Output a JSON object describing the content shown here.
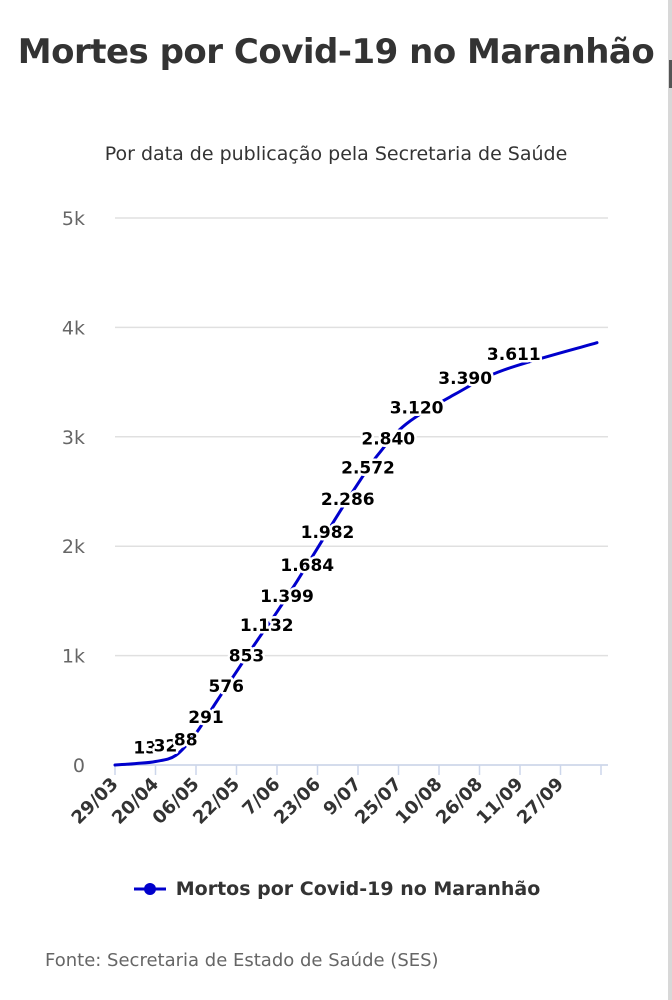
{
  "chart_data": {
    "type": "line",
    "title": "Mortes por Covid-19 no Maranhão",
    "subtitle": "Por data de publicação pela Secretaria de Saúde",
    "ylim": [
      0,
      5000
    ],
    "y_ticks": [
      {
        "value": 0,
        "label": "0"
      },
      {
        "value": 1000,
        "label": "1k"
      },
      {
        "value": 2000,
        "label": "2k"
      },
      {
        "value": 3000,
        "label": "3k"
      },
      {
        "value": 4000,
        "label": "4k"
      },
      {
        "value": 5000,
        "label": "5k"
      }
    ],
    "x_tick_labels": [
      "29/03",
      "20/04",
      "06/05",
      "22/05",
      "7/06",
      "23/06",
      "9/07",
      "25/07",
      "10/08",
      "26/08",
      "11/09",
      "27/09"
    ],
    "grid": true,
    "legend_position": "bottom",
    "series": [
      {
        "name": "Mortos por Covid-19 no Maranhão",
        "color": "#0000cc",
        "points": [
          {
            "x": 0,
            "y": 0
          },
          {
            "x": 0.5,
            "y": 13,
            "label": "13"
          },
          {
            "x": 1,
            "y": 32,
            "label": "32"
          },
          {
            "x": 1.5,
            "y": 88,
            "label": "88"
          },
          {
            "x": 2,
            "y": 291,
            "label": "291"
          },
          {
            "x": 2.5,
            "y": 576,
            "label": "576"
          },
          {
            "x": 3,
            "y": 853,
            "label": "853"
          },
          {
            "x": 3.5,
            "y": 1132,
            "label": "1.132"
          },
          {
            "x": 4,
            "y": 1399,
            "label": "1.399"
          },
          {
            "x": 4.5,
            "y": 1684,
            "label": "1.684"
          },
          {
            "x": 5,
            "y": 1982,
            "label": "1.982"
          },
          {
            "x": 5.5,
            "y": 2286,
            "label": "2.286"
          },
          {
            "x": 6,
            "y": 2572,
            "label": "2.572"
          },
          {
            "x": 6.5,
            "y": 2840,
            "label": "2.840"
          },
          {
            "x": 7.2,
            "y": 3120,
            "label": "3.120"
          },
          {
            "x": 8.4,
            "y": 3390,
            "label": "3.390"
          },
          {
            "x": 9.6,
            "y": 3611,
            "label": "3.611"
          },
          {
            "x": 11.9,
            "y": 3860
          }
        ]
      }
    ]
  },
  "source": "Fonte: Secretaria de Estado de Saúde (SES)"
}
